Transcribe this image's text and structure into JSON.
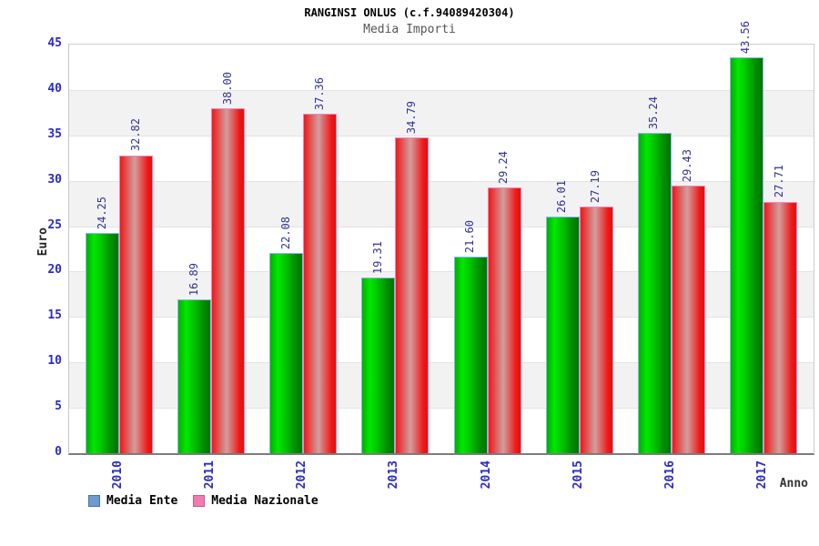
{
  "title": "RANGINSI ONLUS (c.f.94089420304)",
  "subtitle": "Media Importi",
  "chart_data": {
    "type": "bar",
    "categories": [
      "2010",
      "2011",
      "2012",
      "2013",
      "2014",
      "2015",
      "2016",
      "2017"
    ],
    "series": [
      {
        "name": "Media Ente",
        "values": [
          24.25,
          16.89,
          22.08,
          19.31,
          21.6,
          26.01,
          35.24,
          43.56
        ],
        "legend_color": "#6B9BD2",
        "legend_border": "#4A72A0",
        "bar_border": "#85B9EA",
        "bar_gradient": [
          [
            "#00AE00",
            0
          ],
          [
            "#00E800",
            24
          ],
          [
            "#00C400",
            48
          ],
          [
            "#008E00",
            78
          ],
          [
            "#007400",
            100
          ]
        ]
      },
      {
        "name": "Media Nazionale",
        "values": [
          32.82,
          38.0,
          37.36,
          34.79,
          29.24,
          27.19,
          29.43,
          27.71
        ],
        "legend_color": "#F07CB0",
        "legend_border": "#BE5E8C",
        "bar_border": "#F584B8",
        "bar_gradient": [
          [
            "#EE1818",
            0
          ],
          [
            "#D29E9E",
            46
          ],
          [
            "#EE1818",
            86
          ],
          [
            "#DD1111",
            100
          ]
        ]
      }
    ],
    "xlabel": "Anno",
    "ylabel": "Euro",
    "ylim": [
      0,
      45
    ],
    "ytick_step": 5,
    "yticks": [
      0,
      5,
      10,
      15,
      20,
      25,
      30,
      35,
      40,
      45
    ],
    "value_label_decimals": 2,
    "grid": true,
    "band_colors": [
      "#FFFFFF",
      "#F2F2F2"
    ],
    "legend_position": "bottom-left"
  },
  "colors": {
    "axis_tick_label": "#2A2ACC",
    "value_label": "#333399",
    "gridline": "#E3E3E3",
    "plot_border": "#CCCCCC",
    "x_axis_line": "#7C7C7C"
  }
}
